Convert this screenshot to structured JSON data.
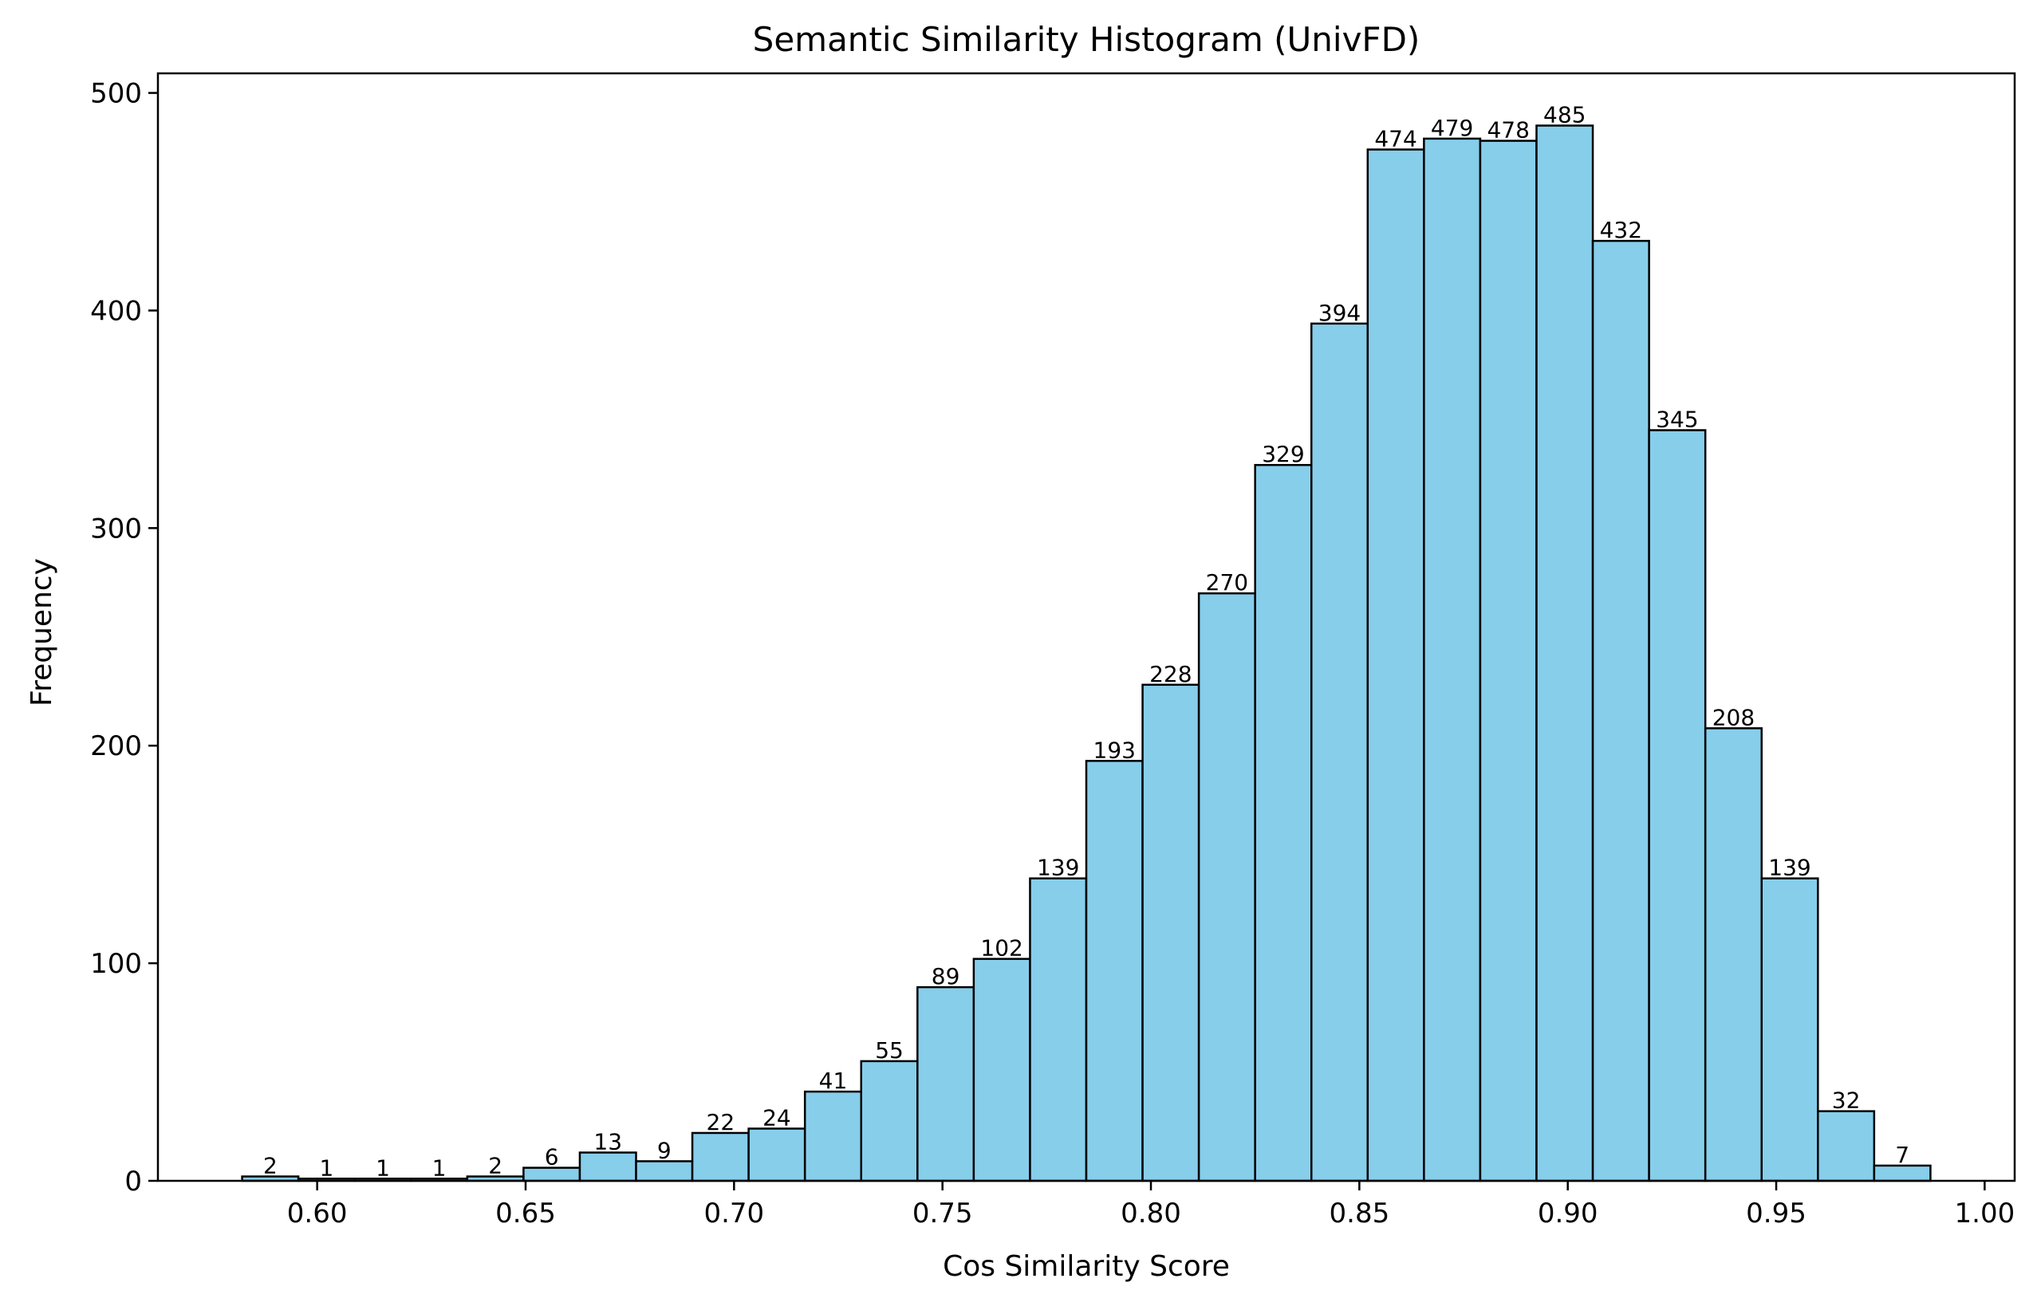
{
  "chart_data": {
    "type": "bar",
    "title": "Semantic Similarity Histogram (UnivFD)",
    "xlabel": "Cos Similarity Score",
    "ylabel": "Frequency",
    "bin_edges": [
      0.582,
      0.5955,
      0.609,
      0.6225,
      0.636,
      0.6495,
      0.663,
      0.6765,
      0.69,
      0.7035,
      0.717,
      0.7305,
      0.744,
      0.7575,
      0.771,
      0.7845,
      0.798,
      0.8115,
      0.825,
      0.8385,
      0.852,
      0.8655,
      0.879,
      0.8925,
      0.906,
      0.9195,
      0.933,
      0.9465,
      0.96,
      0.9735,
      0.987
    ],
    "values": [
      2,
      1,
      1,
      1,
      2,
      6,
      13,
      9,
      22,
      24,
      41,
      55,
      89,
      102,
      139,
      193,
      228,
      270,
      329,
      394,
      474,
      479,
      478,
      485,
      432,
      345,
      208,
      139,
      32,
      7
    ],
    "xlim": [
      0.5618,
      1.0072
    ],
    "ylim": [
      0,
      509
    ],
    "xticks": [
      0.6,
      0.65,
      0.7,
      0.75,
      0.8,
      0.85,
      0.9,
      0.95,
      1.0
    ],
    "xtick_labels": [
      "0.60",
      "0.65",
      "0.70",
      "0.75",
      "0.80",
      "0.85",
      "0.90",
      "0.95",
      "1.00"
    ],
    "yticks": [
      0,
      100,
      200,
      300,
      400,
      500
    ],
    "ytick_labels": [
      "0",
      "100",
      "200",
      "300",
      "400",
      "500"
    ],
    "grid": false,
    "bar_color": "#87ceeb",
    "edge_color": "#000000"
  }
}
